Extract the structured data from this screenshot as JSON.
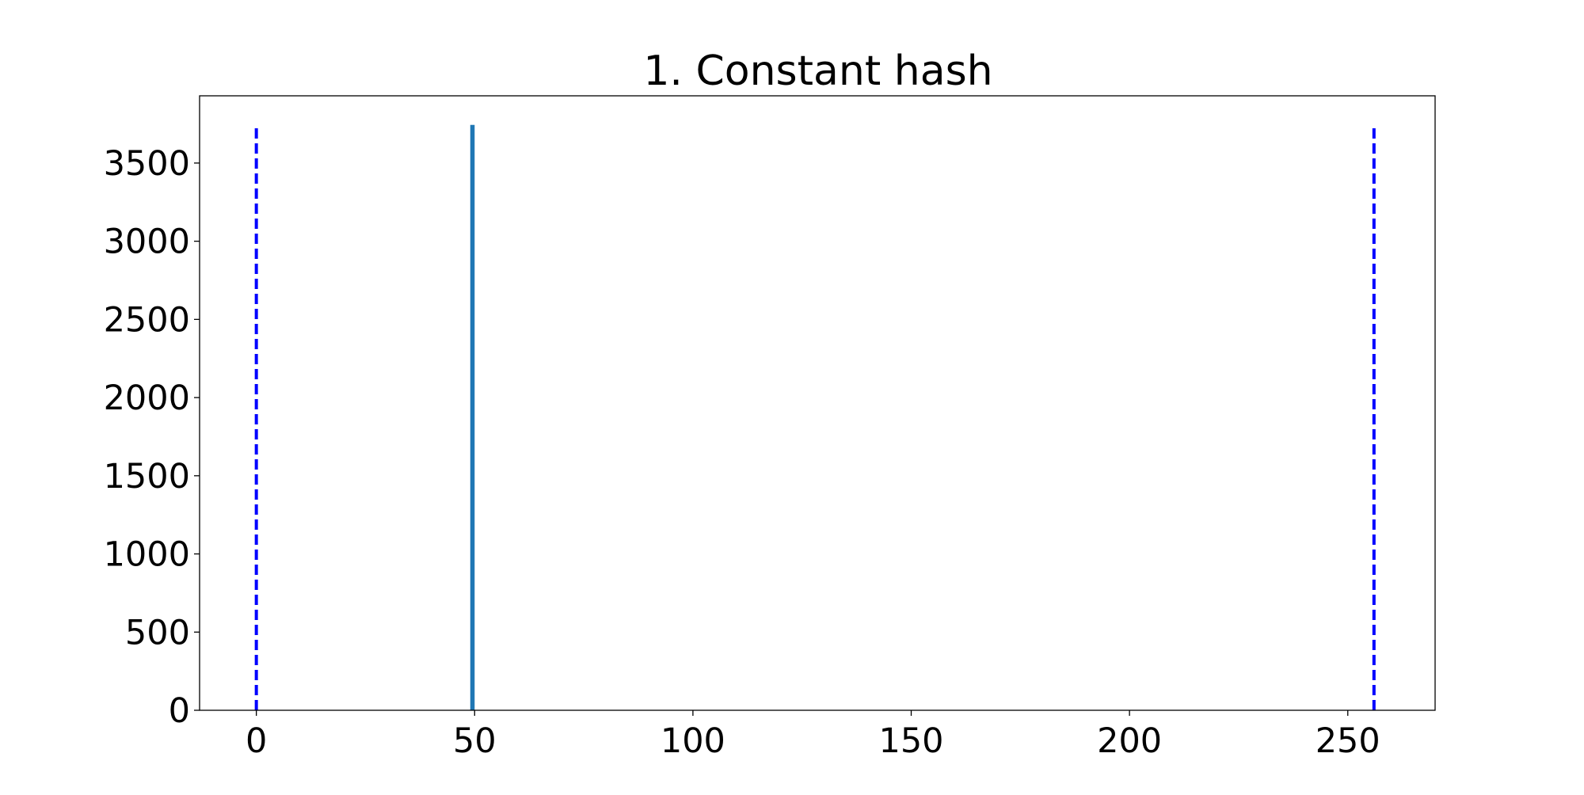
{
  "chart_data": {
    "type": "bar",
    "title": "1. Constant hash",
    "xlabel": "",
    "ylabel": "",
    "xlim": [
      -13,
      270
    ],
    "ylim": [
      0,
      3930
    ],
    "xticks": [
      0,
      50,
      100,
      150,
      200,
      250
    ],
    "yticks": [
      0,
      500,
      1000,
      1500,
      2000,
      2500,
      3000,
      3500
    ],
    "grid": false,
    "bars": [
      {
        "x": 49.5,
        "width": 1,
        "value": 3744,
        "color": "#1f77b4"
      }
    ],
    "vlines": [
      {
        "x": 0,
        "ymin": 0,
        "ymax": 3744,
        "style": "dashed",
        "color": "#0000ff"
      },
      {
        "x": 256,
        "ymin": 0,
        "ymax": 3744,
        "style": "dashed",
        "color": "#0000ff"
      }
    ]
  }
}
